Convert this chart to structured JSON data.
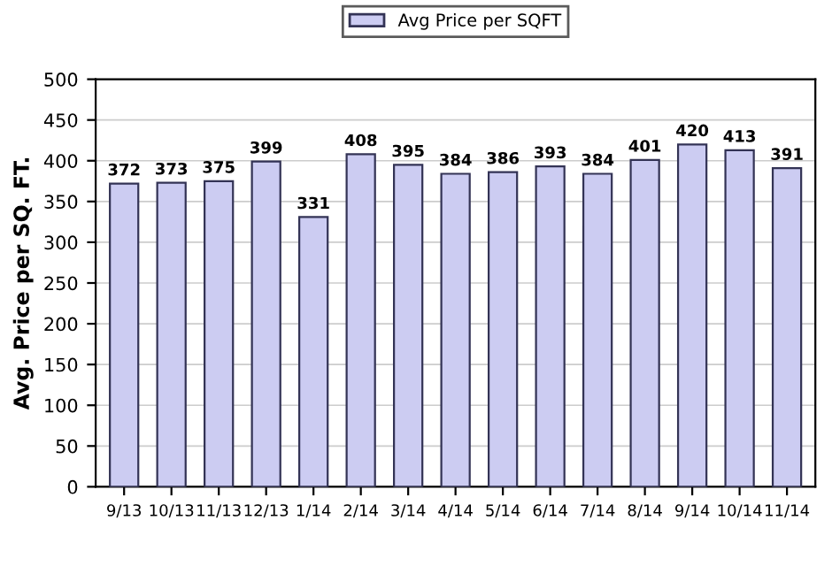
{
  "chart_data": {
    "type": "bar",
    "ylabel": "Avg. Price per SQ. FT.",
    "categories": [
      "9/13",
      "10/13",
      "11/13",
      "12/13",
      "1/14",
      "2/14",
      "3/14",
      "4/14",
      "5/14",
      "6/14",
      "7/14",
      "8/14",
      "9/14",
      "10/14",
      "11/14"
    ],
    "series": [
      {
        "name": "Avg Price per SQFT",
        "color": "#ccccf2",
        "values": [
          372,
          373,
          375,
          399,
          331,
          408,
          395,
          384,
          386,
          393,
          384,
          401,
          420,
          413,
          391
        ]
      }
    ],
    "ylim": [
      0,
      500
    ],
    "yticks": [
      0,
      50,
      100,
      150,
      200,
      250,
      300,
      350,
      400,
      450,
      500
    ],
    "grid": "y",
    "legend": "top",
    "data_labels": true
  }
}
